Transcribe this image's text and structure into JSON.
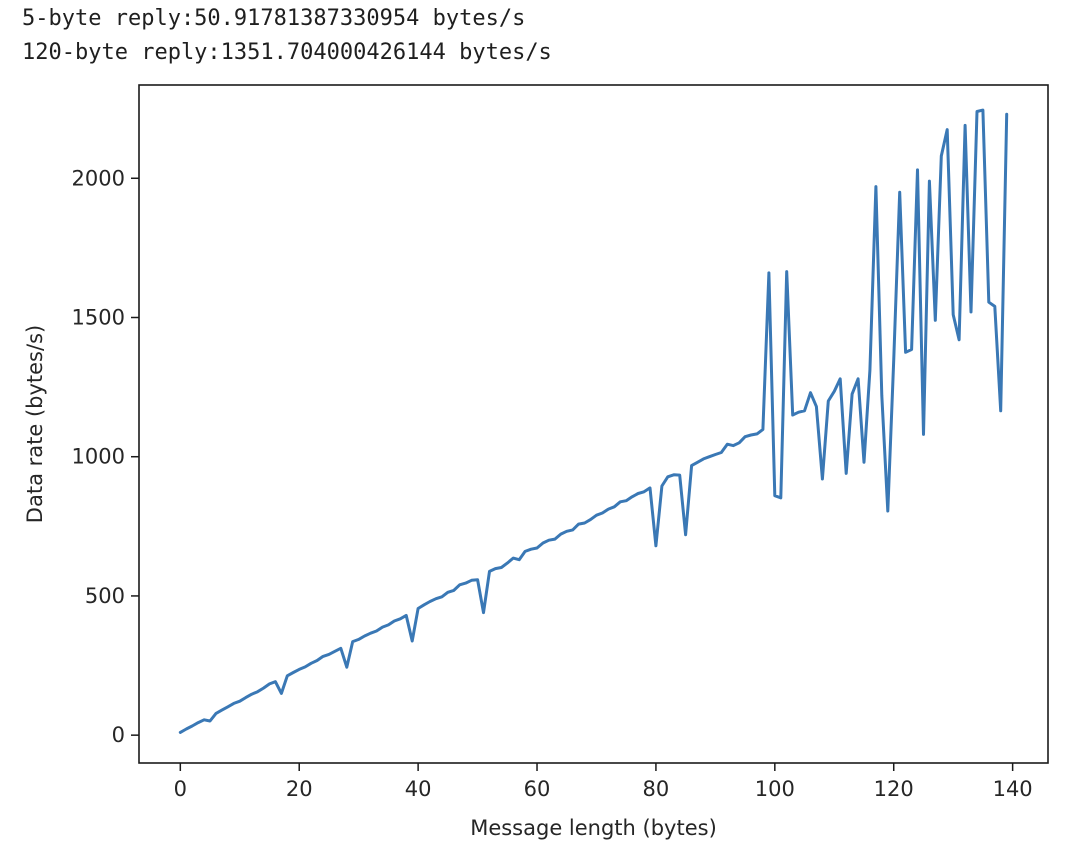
{
  "output": {
    "lines": [
      "5-byte reply:50.91781387330954 bytes/s",
      "120-byte reply:1351.704000426144 bytes/s"
    ]
  },
  "chart_data": {
    "type": "line",
    "title": "",
    "xlabel": "Message length (bytes)",
    "ylabel": "Data rate (bytes/s)",
    "xlim": [
      -6.95,
      145.95
    ],
    "ylim": [
      -100,
      2335
    ],
    "xticks": [
      0,
      20,
      40,
      60,
      80,
      100,
      120,
      140
    ],
    "yticks": [
      0,
      500,
      1000,
      1500,
      2000
    ],
    "grid": false,
    "line_color": "#3a78b5",
    "series": [
      {
        "x": [
          0,
          1,
          2,
          3,
          4,
          5,
          6,
          7,
          8,
          9,
          10,
          11,
          12,
          13,
          14,
          15,
          16,
          17,
          18,
          19,
          20,
          21,
          22,
          23,
          24,
          25,
          26,
          27,
          28,
          29,
          30,
          31,
          32,
          33,
          34,
          35,
          36,
          37,
          38,
          39,
          40,
          41,
          42,
          43,
          44,
          45,
          46,
          47,
          48,
          49,
          50,
          51,
          52,
          53,
          54,
          55,
          56,
          57,
          58,
          59,
          60,
          61,
          62,
          63,
          64,
          65,
          66,
          67,
          68,
          69,
          70,
          71,
          72,
          73,
          74,
          75,
          76,
          77,
          78,
          79,
          80,
          81,
          82,
          83,
          84,
          85,
          86,
          87,
          88,
          89,
          90,
          91,
          92,
          93,
          94,
          95,
          96,
          97,
          98,
          99,
          100,
          101,
          102,
          103,
          104,
          105,
          106,
          107,
          108,
          109,
          110,
          111,
          112,
          113,
          114,
          115,
          116,
          117,
          118,
          119,
          120,
          121,
          122,
          123,
          124,
          125,
          126,
          127,
          128,
          129,
          130,
          131,
          132,
          133,
          134,
          135,
          136,
          137,
          138,
          139
        ],
        "y": [
          10,
          22,
          33,
          45,
          55,
          51,
          78,
          90,
          102,
          114,
          122,
          135,
          147,
          156,
          169,
          184,
          192,
          150,
          213,
          225,
          236,
          245,
          258,
          268,
          283,
          290,
          301,
          312,
          244,
          336,
          344,
          356,
          366,
          374,
          388,
          396,
          410,
          418,
          430,
          338,
          455,
          468,
          480,
          490,
          497,
          513,
          520,
          540,
          546,
          556,
          558,
          440,
          588,
          598,
          602,
          618,
          636,
          630,
          660,
          668,
          672,
          690,
          700,
          704,
          722,
          732,
          737,
          758,
          762,
          774,
          790,
          798,
          812,
          820,
          838,
          842,
          856,
          868,
          874,
          888,
          680,
          895,
          928,
          935,
          934,
          720,
          968,
          980,
          992,
          1000,
          1008,
          1015,
          1045,
          1040,
          1050,
          1072,
          1078,
          1082,
          1098,
          1660,
          860,
          852,
          1665,
          1150,
          1160,
          1165,
          1230,
          1180,
          920,
          1200,
          1235,
          1280,
          940,
          1225,
          1280,
          980,
          1310,
          1970,
          1220,
          805,
          1345,
          1950,
          1375,
          1385,
          2030,
          1080,
          1990,
          1490,
          2080,
          2175,
          1510,
          1420,
          2190,
          1520,
          2240,
          2245,
          1555,
          1540,
          1165,
          2230
        ]
      }
    ]
  }
}
